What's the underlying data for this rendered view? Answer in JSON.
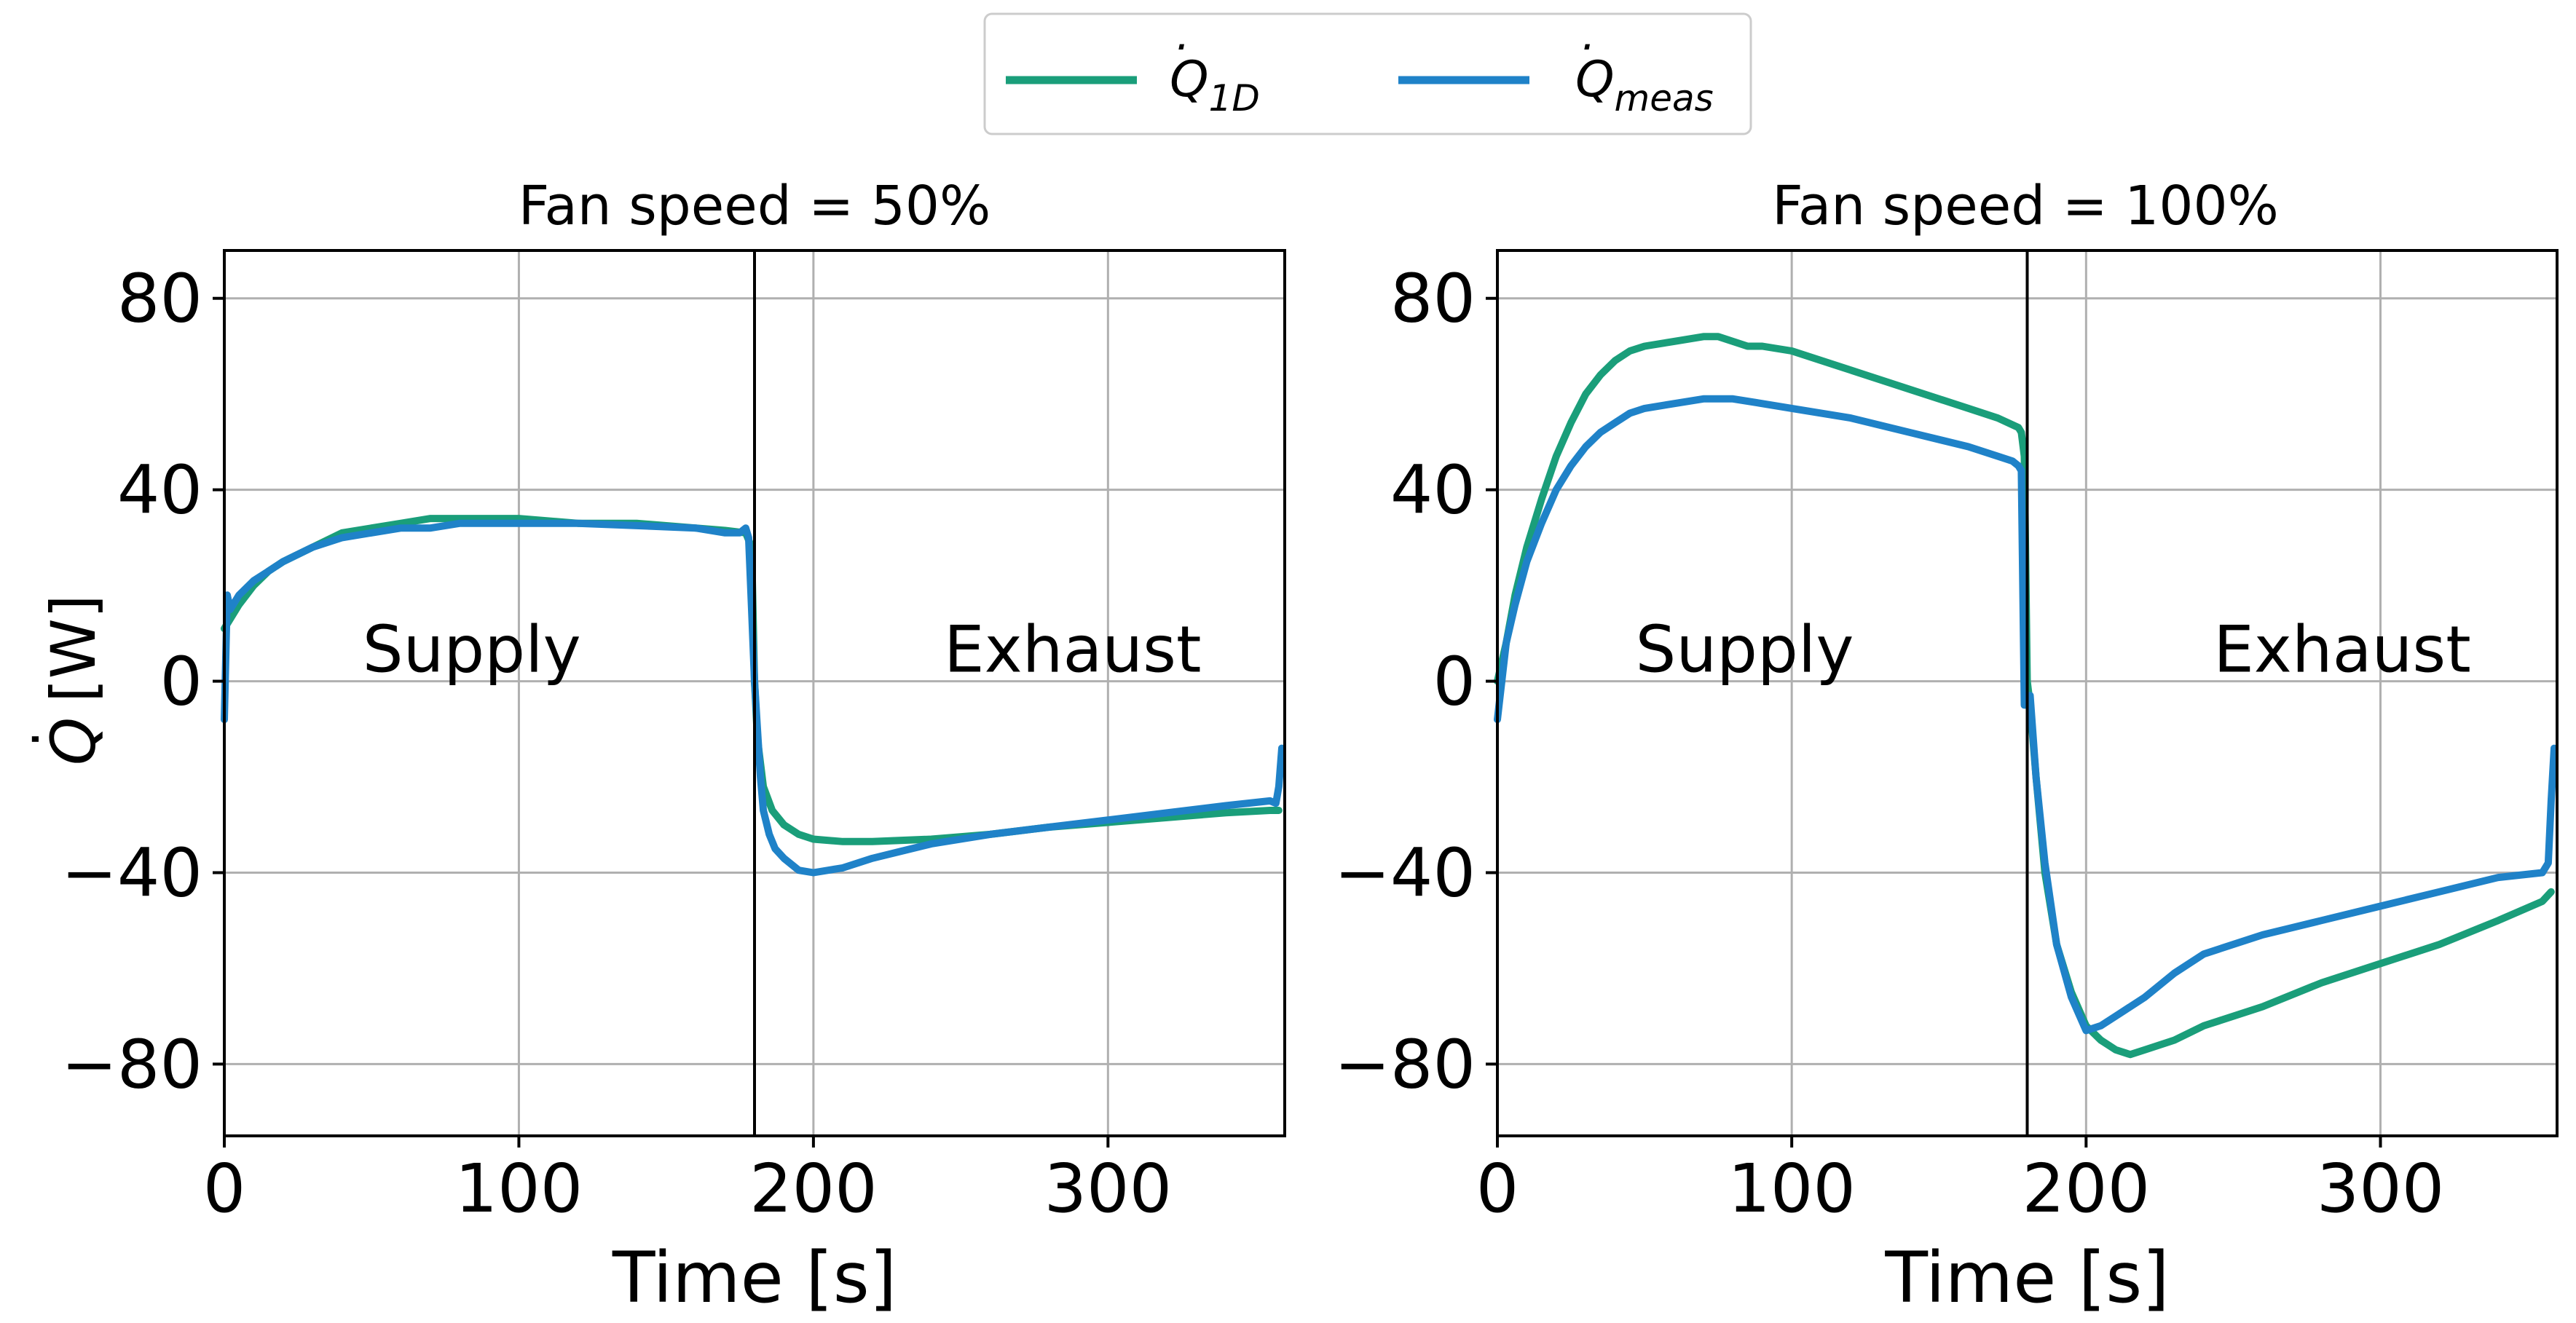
{
  "legend": {
    "placement": "top-center",
    "entries": [
      {
        "series_key": "q1d",
        "base": "Q",
        "sub": "1D"
      },
      {
        "series_key": "qmeas",
        "base": "Q",
        "sub": "meas"
      }
    ]
  },
  "colors": {
    "q1d": "#1a9e7a",
    "qmeas": "#1f82c8",
    "grid": "#b0b0b0",
    "axes": "#000000"
  },
  "shared": {
    "ylabel": "[W]",
    "ylabel_symbol": "Q",
    "xlabel": "Time [s]",
    "xlim": [
      0,
      360
    ],
    "ylim": [
      -95,
      90
    ],
    "xticks": [
      0,
      100,
      200,
      300
    ],
    "yticks": [
      80,
      40,
      0,
      -40,
      -80
    ],
    "ytick_labels": [
      "80",
      "40",
      "0",
      "−40",
      "−80"
    ],
    "divider_x": 180,
    "region_label_y": 2
  },
  "chart_data": [
    {
      "type": "line",
      "title": "Fan speed = 50%",
      "annotations": [
        {
          "text": "Supply",
          "x": 84
        },
        {
          "text": "Exhaust",
          "x": 288
        }
      ],
      "series": [
        {
          "name": "Q_1D",
          "key": "q1d",
          "x": [
            0,
            2,
            5,
            10,
            15,
            20,
            30,
            40,
            50,
            60,
            70,
            80,
            90,
            100,
            120,
            140,
            160,
            170,
            177,
            179,
            180,
            181,
            183,
            186,
            190,
            195,
            200,
            210,
            220,
            240,
            260,
            280,
            300,
            320,
            340,
            355,
            358
          ],
          "y": [
            11,
            13,
            16,
            20,
            23,
            25,
            28,
            31,
            32,
            33,
            34,
            34,
            34,
            34,
            33,
            33,
            32,
            31.5,
            31,
            28,
            0,
            -12,
            -22,
            -27,
            -30,
            -32,
            -33,
            -33.5,
            -33.5,
            -33,
            -32,
            -30.5,
            -29.5,
            -28.5,
            -27.5,
            -27,
            -27
          ]
        },
        {
          "name": "Q_meas",
          "key": "qmeas",
          "x": [
            0,
            1,
            2,
            5,
            10,
            15,
            20,
            30,
            40,
            50,
            60,
            70,
            80,
            90,
            100,
            120,
            140,
            160,
            170,
            175,
            177,
            178,
            179,
            180,
            181,
            182,
            183,
            185,
            187,
            190,
            195,
            200,
            210,
            220,
            230,
            240,
            250,
            260,
            280,
            300,
            320,
            340,
            355,
            357,
            358,
            359
          ],
          "y": [
            -8,
            18,
            15,
            18,
            21,
            23,
            25,
            28,
            30,
            31,
            32,
            32,
            33,
            33,
            33,
            33,
            32.5,
            32,
            31,
            31,
            32,
            30,
            15,
            0,
            -10,
            -20,
            -27,
            -32,
            -35,
            -37,
            -39.5,
            -40,
            -39,
            -37,
            -35.5,
            -34,
            -33,
            -32,
            -30.5,
            -29,
            -27.5,
            -26,
            -25,
            -25.5,
            -22,
            -14
          ]
        }
      ]
    },
    {
      "type": "line",
      "title": "Fan speed = 100%",
      "annotations": [
        {
          "text": "Supply",
          "x": 84
        },
        {
          "text": "Exhaust",
          "x": 287
        }
      ],
      "series": [
        {
          "name": "Q_1D",
          "key": "q1d",
          "x": [
            0,
            3,
            6,
            10,
            15,
            20,
            25,
            30,
            35,
            40,
            45,
            50,
            60,
            70,
            75,
            80,
            85,
            90,
            100,
            120,
            140,
            160,
            170,
            177,
            178,
            179,
            180,
            181,
            183,
            186,
            190,
            195,
            200,
            205,
            210,
            215,
            220,
            230,
            240,
            260,
            280,
            300,
            320,
            340,
            355,
            358
          ],
          "y": [
            0,
            8,
            18,
            28,
            38,
            47,
            54,
            60,
            64,
            67,
            69,
            70,
            71,
            72,
            72,
            71,
            70,
            70,
            69,
            65,
            61,
            57,
            55,
            53,
            52,
            47,
            0,
            -5,
            -20,
            -40,
            -55,
            -65,
            -72,
            -75,
            -77,
            -78,
            -77,
            -75,
            -72,
            -68,
            -63,
            -59,
            -55,
            -50,
            -46,
            -44
          ]
        },
        {
          "name": "Q_meas",
          "key": "qmeas",
          "x": [
            0,
            3,
            6,
            10,
            15,
            20,
            25,
            30,
            35,
            40,
            45,
            50,
            60,
            70,
            80,
            90,
            100,
            120,
            140,
            160,
            170,
            175,
            177,
            178,
            179,
            180,
            181,
            183,
            186,
            190,
            195,
            200,
            205,
            210,
            220,
            230,
            240,
            260,
            280,
            300,
            320,
            340,
            355,
            357,
            358,
            359
          ],
          "y": [
            -8,
            8,
            16,
            25,
            33,
            40,
            45,
            49,
            52,
            54,
            56,
            57,
            58,
            59,
            59,
            58,
            57,
            55,
            52,
            49,
            47,
            46,
            45,
            44,
            -5,
            -5,
            -3,
            -20,
            -38,
            -55,
            -66,
            -73,
            -72,
            -70,
            -66,
            -61,
            -57,
            -53,
            -50,
            -47,
            -44,
            -41,
            -40,
            -38,
            -25,
            -14
          ]
        }
      ]
    }
  ]
}
